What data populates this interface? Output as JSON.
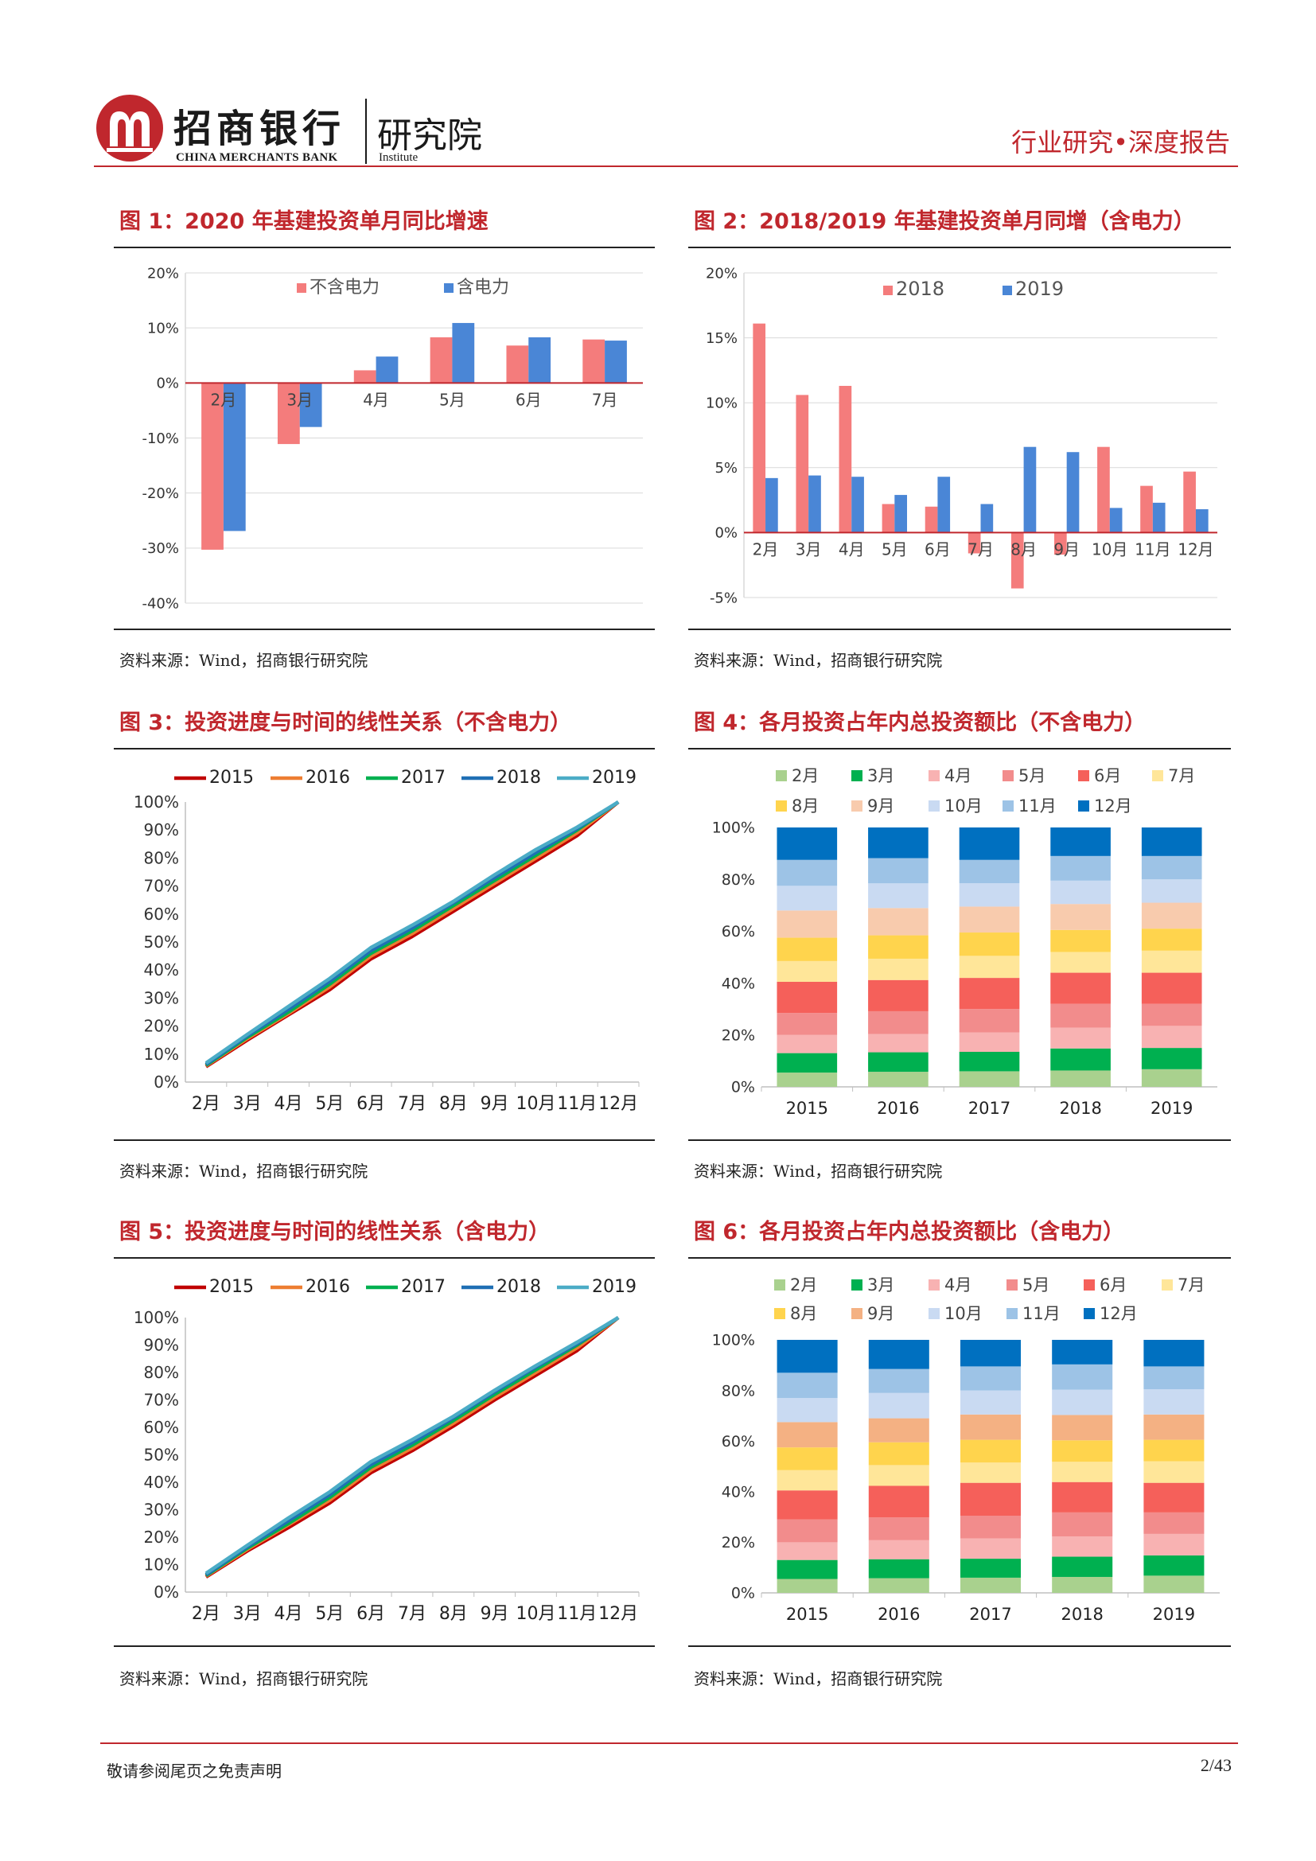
{
  "header": {
    "brand": "招商银行",
    "brand_en": "CHINA MERCHANTS BANK",
    "institute": "研究院",
    "institute_en": "Institute",
    "report_type": "行业研究•深度报告"
  },
  "colors": {
    "accent": "#c0272d",
    "pink": "#f47c7c",
    "blue": "#4a86d6"
  },
  "figures": [
    {
      "title": "图 1：2020 年基建投资单月同比增速",
      "source": "资料来源：Wind，招商银行研究院"
    },
    {
      "title": "图 2：2018/2019 年基建投资单月同增（含电力）",
      "source": "资料来源：Wind，招商银行研究院"
    },
    {
      "title": "图 3：投资进度与时间的线性关系（不含电力）",
      "source": "资料来源：Wind，招商银行研究院"
    },
    {
      "title": "图 4：各月投资占年内总投资额比（不含电力）",
      "source": "资料来源：Wind，招商银行研究院"
    },
    {
      "title": "图 5：投资进度与时间的线性关系（含电力）",
      "source": "资料来源：Wind，招商银行研究院"
    },
    {
      "title": "图 6：各月投资占年内总投资额比（含电力）",
      "source": "资料来源：Wind，招商银行研究院"
    }
  ],
  "chart_data": [
    {
      "type": "bar",
      "title": "2020 年基建投资单月同比增速",
      "categories": [
        "2月",
        "3月",
        "4月",
        "5月",
        "6月",
        "7月"
      ],
      "series": [
        {
          "name": "不含电力",
          "color": "#f47c7c",
          "values": [
            -30.3,
            -11.1,
            2.3,
            8.3,
            6.8,
            7.9
          ]
        },
        {
          "name": "含电力",
          "color": "#4a86d6",
          "values": [
            -26.9,
            -8.0,
            4.8,
            10.9,
            8.3,
            7.7
          ]
        }
      ],
      "ylim": [
        -40,
        20
      ],
      "yticks": [
        "20%",
        "10%",
        "0%",
        "-10%",
        "-20%",
        "-30%",
        "-40%"
      ],
      "legend": "top"
    },
    {
      "type": "bar",
      "title": "2018/2019 年基建投资单月同增（含电力）",
      "categories": [
        "2月",
        "3月",
        "4月",
        "5月",
        "6月",
        "7月",
        "8月",
        "9月",
        "10月",
        "11月",
        "12月"
      ],
      "series": [
        {
          "name": "2018",
          "color": "#f47c7c",
          "values": [
            16.1,
            10.6,
            11.3,
            2.2,
            2.0,
            -1.6,
            -4.3,
            -1.7,
            6.6,
            3.6,
            4.7
          ]
        },
        {
          "name": "2019",
          "color": "#4a86d6",
          "values": [
            4.2,
            4.4,
            4.3,
            2.9,
            4.3,
            2.2,
            6.6,
            6.2,
            1.9,
            2.3,
            1.8
          ]
        }
      ],
      "ylim": [
        -5,
        20
      ],
      "yticks": [
        "20%",
        "15%",
        "10%",
        "5%",
        "0%",
        "-5%"
      ],
      "legend": "top"
    },
    {
      "type": "line",
      "title": "投资进度与时间的线性关系（不含电力）",
      "categories": [
        "2月",
        "3月",
        "4月",
        "5月",
        "6月",
        "7月",
        "8月",
        "9月",
        "10月",
        "11月",
        "12月"
      ],
      "series": [
        {
          "name": "2015",
          "color": "#c00000",
          "values": [
            5.5,
            15,
            24,
            33,
            44,
            52,
            61,
            70,
            79,
            88,
            100
          ]
        },
        {
          "name": "2016",
          "color": "#ed7d31",
          "values": [
            5.8,
            15.5,
            24.5,
            34,
            45,
            53,
            62,
            71,
            80,
            89,
            100
          ]
        },
        {
          "name": "2017",
          "color": "#00b050",
          "values": [
            6,
            16,
            25,
            35,
            46,
            54,
            63,
            72,
            81,
            90,
            100
          ]
        },
        {
          "name": "2018",
          "color": "#1f6fb4",
          "values": [
            6.3,
            16.5,
            26,
            36,
            47,
            55,
            64,
            73,
            82,
            90.5,
            100
          ]
        },
        {
          "name": "2019",
          "color": "#4bacc6",
          "values": [
            6.8,
            17,
            27,
            37,
            48,
            56,
            64.5,
            74,
            83,
            91,
            100
          ]
        }
      ],
      "ylim": [
        0,
        100
      ],
      "yticks": [
        "100%",
        "90%",
        "80%",
        "70%",
        "60%",
        "50%",
        "40%",
        "30%",
        "20%",
        "10%",
        "0%"
      ],
      "legend": "top"
    },
    {
      "type": "bar",
      "stacked": true,
      "title": "各月投资占年内总投资额比（不含电力）",
      "categories": [
        "2015",
        "2016",
        "2017",
        "2018",
        "2019"
      ],
      "legend_rows": [
        [
          "2月",
          "3月",
          "4月",
          "5月",
          "6月",
          "7月"
        ],
        [
          "8月",
          "9月",
          "10月",
          "11月",
          "12月"
        ]
      ],
      "series": [
        {
          "name": "2月",
          "color": "#a9d18e",
          "values": [
            5.5,
            5.8,
            6.0,
            6.3,
            6.8
          ]
        },
        {
          "name": "3月",
          "color": "#00b050",
          "values": [
            7.5,
            7.5,
            7.5,
            8.5,
            8.2
          ]
        },
        {
          "name": "4月",
          "color": "#f8b2b2",
          "values": [
            7.0,
            7.0,
            7.5,
            8.0,
            8.5
          ]
        },
        {
          "name": "5月",
          "color": "#f28c8c",
          "values": [
            8.5,
            8.8,
            9.0,
            9.2,
            8.5
          ]
        },
        {
          "name": "6月",
          "color": "#f5605a",
          "values": [
            12.0,
            12.0,
            12.0,
            12.0,
            12.0
          ]
        },
        {
          "name": "7月",
          "color": "#ffe699",
          "values": [
            8.0,
            8.2,
            8.5,
            8.0,
            8.5
          ]
        },
        {
          "name": "8月",
          "color": "#ffd44d",
          "values": [
            9.0,
            9.0,
            9.0,
            8.5,
            8.5
          ]
        },
        {
          "name": "9月",
          "color": "#f8cbad",
          "values": [
            10.5,
            10.5,
            10.0,
            10.0,
            10.0
          ]
        },
        {
          "name": "10月",
          "color": "#c9daf2",
          "values": [
            9.5,
            9.5,
            9.0,
            9.0,
            9.0
          ]
        },
        {
          "name": "11月",
          "color": "#9dc3e6",
          "values": [
            10.0,
            9.7,
            9.0,
            9.5,
            9.0
          ]
        },
        {
          "name": "12月",
          "color": "#0070c0",
          "values": [
            12.5,
            11.8,
            12.5,
            11.0,
            11.0
          ]
        }
      ],
      "ylim": [
        0,
        100
      ],
      "yticks": [
        "100%",
        "80%",
        "60%",
        "40%",
        "20%",
        "0%"
      ]
    },
    {
      "type": "line",
      "title": "投资进度与时间的线性关系（含电力）",
      "categories": [
        "2月",
        "3月",
        "4月",
        "5月",
        "6月",
        "7月",
        "8月",
        "9月",
        "10月",
        "11月",
        "12月"
      ],
      "series": [
        {
          "name": "2015",
          "color": "#c00000",
          "values": [
            5.5,
            15,
            23.5,
            32.5,
            43.5,
            51.5,
            60.5,
            70,
            79,
            88,
            100
          ]
        },
        {
          "name": "2016",
          "color": "#ed7d31",
          "values": [
            5.8,
            15.5,
            24.5,
            33.5,
            44.5,
            52.5,
            61.5,
            71,
            80,
            89,
            100
          ]
        },
        {
          "name": "2017",
          "color": "#00b050",
          "values": [
            6,
            16,
            25,
            34.5,
            45.5,
            53.5,
            62.5,
            72,
            81,
            90,
            100
          ]
        },
        {
          "name": "2018",
          "color": "#1f6fb4",
          "values": [
            6.3,
            16.5,
            26,
            35.5,
            46.5,
            54.5,
            63.5,
            73,
            82,
            90.5,
            100
          ]
        },
        {
          "name": "2019",
          "color": "#4bacc6",
          "values": [
            6.8,
            17,
            27,
            36.5,
            47.5,
            55.5,
            64,
            73.5,
            82.5,
            91,
            100
          ]
        }
      ],
      "ylim": [
        0,
        100
      ],
      "yticks": [
        "100%",
        "90%",
        "80%",
        "70%",
        "60%",
        "50%",
        "40%",
        "30%",
        "20%",
        "10%",
        "0%"
      ],
      "legend": "top"
    },
    {
      "type": "bar",
      "stacked": true,
      "title": "各月投资占年内总投资额比（含电力）",
      "categories": [
        "2015",
        "2016",
        "2017",
        "2018",
        "2019"
      ],
      "legend_rows": [
        [
          "2月",
          "3月",
          "4月",
          "5月",
          "6月",
          "7月"
        ],
        [
          "8月",
          "9月",
          "10月",
          "11月",
          "12月"
        ]
      ],
      "series": [
        {
          "name": "2月",
          "color": "#a9d18e",
          "values": [
            5.5,
            5.8,
            6.0,
            6.3,
            6.8
          ]
        },
        {
          "name": "3月",
          "color": "#00b050",
          "values": [
            7.5,
            7.5,
            7.5,
            8.0,
            8.0
          ]
        },
        {
          "name": "4月",
          "color": "#f8b2b2",
          "values": [
            7.0,
            7.5,
            8.0,
            8.0,
            8.5
          ]
        },
        {
          "name": "5月",
          "color": "#f28c8c",
          "values": [
            9.0,
            9.0,
            9.0,
            9.5,
            8.5
          ]
        },
        {
          "name": "6月",
          "color": "#f5605a",
          "values": [
            11.5,
            12.5,
            13.0,
            12.0,
            11.7
          ]
        },
        {
          "name": "7月",
          "color": "#ffe699",
          "values": [
            8.0,
            8.2,
            8.0,
            8.0,
            8.5
          ]
        },
        {
          "name": "8月",
          "color": "#ffd44d",
          "values": [
            9.0,
            9.0,
            9.0,
            8.5,
            8.5
          ]
        },
        {
          "name": "9月",
          "color": "#f4b183",
          "values": [
            10.0,
            9.5,
            10.0,
            10.0,
            10.0
          ]
        },
        {
          "name": "10月",
          "color": "#c9daf2",
          "values": [
            9.5,
            10.0,
            9.5,
            10.0,
            10.0
          ]
        },
        {
          "name": "11月",
          "color": "#9dc3e6",
          "values": [
            10.0,
            9.5,
            9.5,
            10.0,
            9.0
          ]
        },
        {
          "name": "12月",
          "color": "#0070c0",
          "values": [
            13.0,
            11.5,
            10.5,
            9.7,
            10.5
          ]
        }
      ],
      "ylim": [
        0,
        100
      ],
      "yticks": [
        "100%",
        "80%",
        "60%",
        "40%",
        "20%",
        "0%"
      ]
    }
  ],
  "footer": {
    "disclaimer": "敬请参阅尾页之免责声明",
    "page": "2/43"
  }
}
